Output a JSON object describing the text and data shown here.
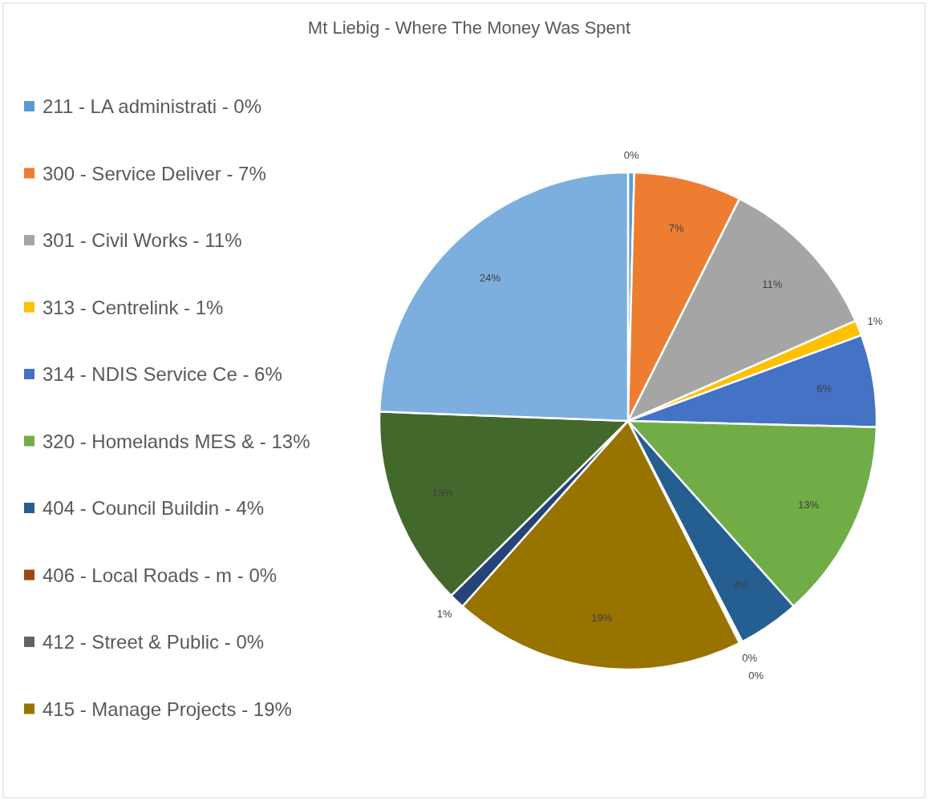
{
  "chart_data": {
    "type": "pie",
    "title": "Mt Liebig - Where The Money Was Spent",
    "categories": [
      "211 - LA administrati -  0%",
      "300 - Service Deliver - 7%",
      "301 - Civil Works - 11%",
      "313 - Centrelink - 1%",
      "314 - NDIS Service Ce - 6%",
      "320 - Homelands MES & - 13%",
      "404 - Council Buildin - 4%",
      "406 - Local Roads - m - 0%",
      "412 - Street & Public - 0%",
      "415 - Manage Projects - 19%",
      null,
      null,
      null
    ],
    "values": [
      0.4,
      7,
      11,
      1,
      6,
      13,
      4,
      0.1,
      0.1,
      19,
      1,
      13,
      24.4
    ],
    "value_labels": [
      "0%",
      "7%",
      "11%",
      "1%",
      "6%",
      "13%",
      "4%",
      "0%",
      "0%",
      "19%",
      "1%",
      "13%",
      "24%"
    ],
    "colors": [
      "#5b9bd5",
      "#ed7d31",
      "#a5a5a5",
      "#ffc000",
      "#4472c4",
      "#70ad47",
      "#255e91",
      "#9e480e",
      "#636363",
      "#997300",
      "#264478",
      "#43682b",
      "#7cafdd"
    ],
    "legend": "left"
  }
}
